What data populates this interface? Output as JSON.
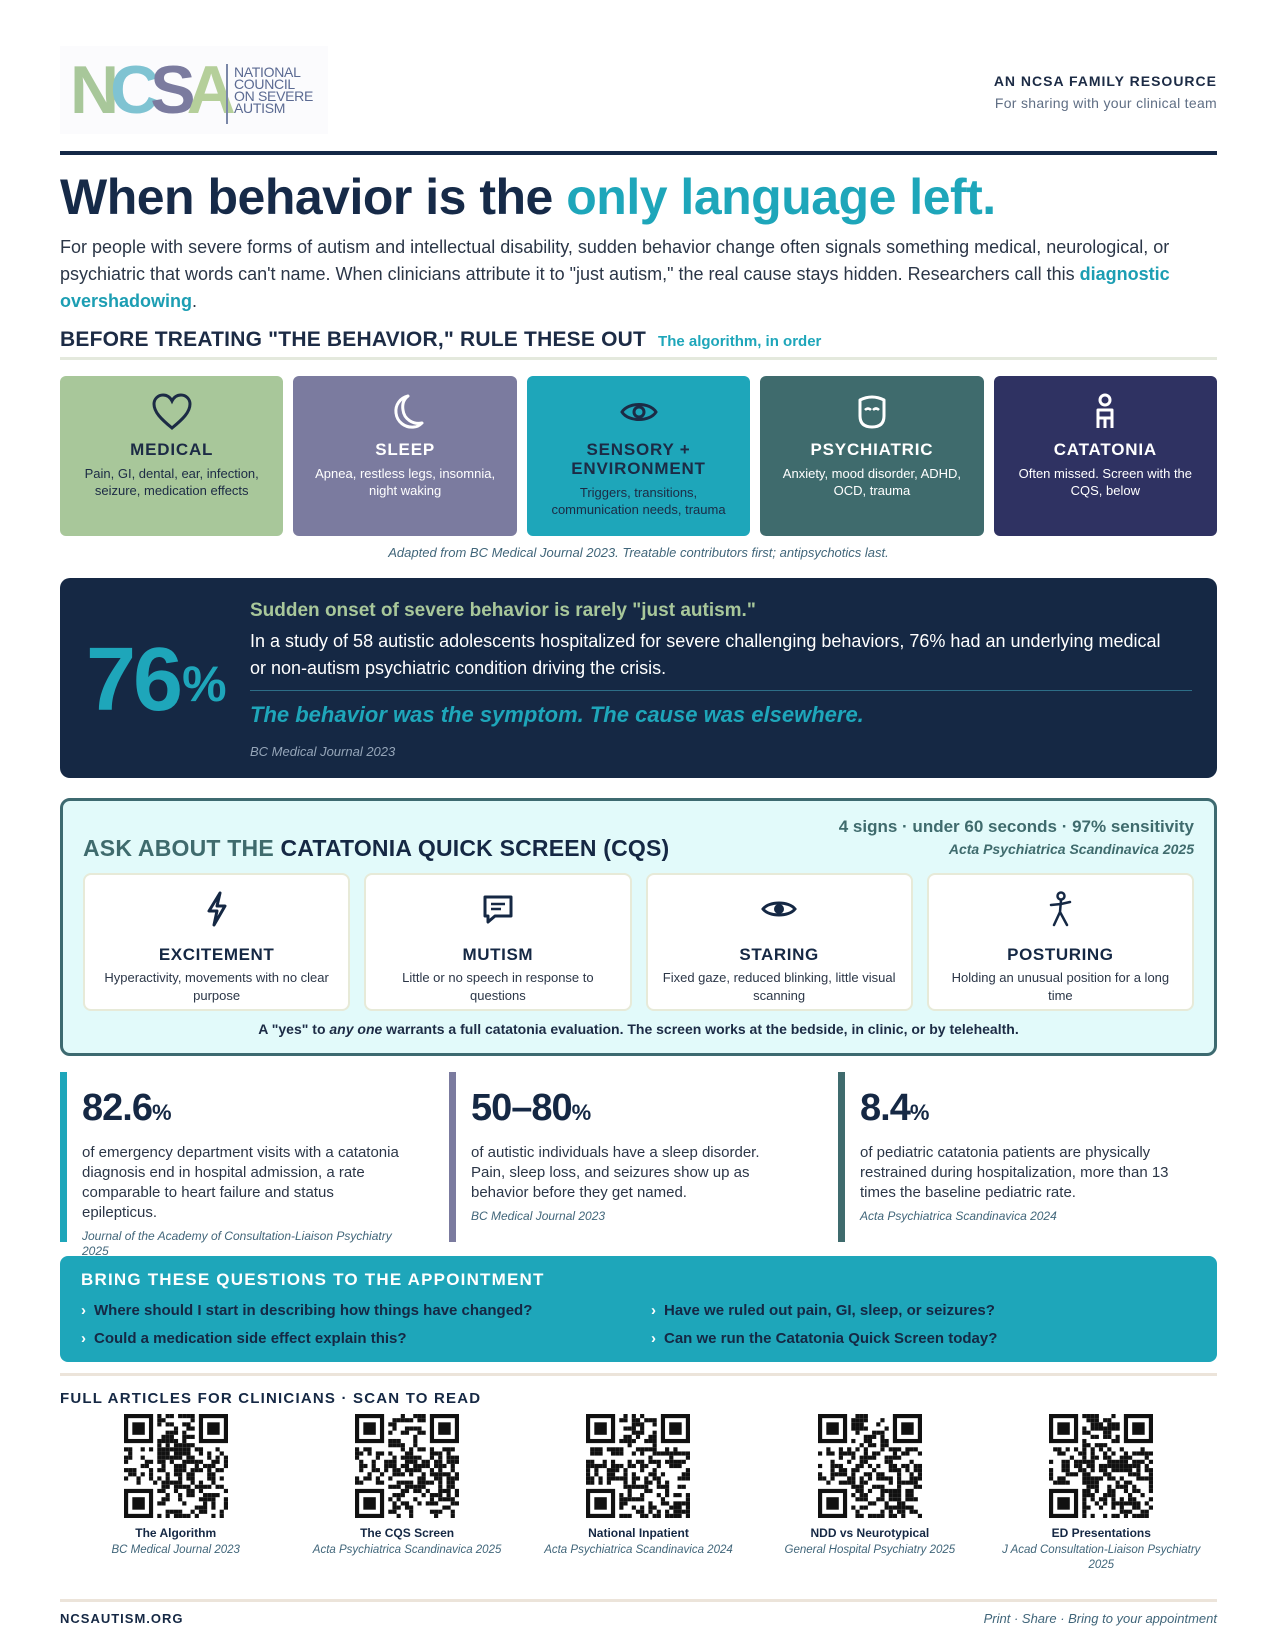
{
  "brand": {
    "logo_letters": [
      "N",
      "C",
      "S",
      "A"
    ],
    "logo_words": [
      "NATIONAL",
      "COUNCIL",
      "ON SEVERE",
      "AUTISM"
    ],
    "colors": {
      "n": "#a8c79a",
      "c": "#7fc3d2",
      "s": "#7b7b9f",
      "a": "#b5cf9a",
      "navy": "#152844",
      "teal": "#1ea6ba"
    }
  },
  "header": {
    "kicker": "AN NCSA FAMILY RESOURCE",
    "sub": "For sharing with your clinical team"
  },
  "headline": {
    "main": "When behavior is the ",
    "accent": "only language left."
  },
  "intro": {
    "text": "For people with severe forms of autism and intellectual disability, sudden behavior change often signals something medical, neurological, or psychiatric that words can't name. When clinicians attribute it to \"just autism,\" the real cause stays hidden. Researchers call this ",
    "highlight": "diagnostic overshadowing",
    "end": "."
  },
  "algorithm": {
    "title": "BEFORE TREATING \"THE BEHAVIOR,\" RULE THESE OUT",
    "subtitle": "The algorithm, in order",
    "cards": [
      {
        "icon": "heart-icon",
        "title": "MEDICAL",
        "desc": "Pain, GI, dental, ear, infection, seizure, medication effects"
      },
      {
        "icon": "moon-icon",
        "title": "SLEEP",
        "desc": "Apnea, restless legs, insomnia, night waking"
      },
      {
        "icon": "eye-icon",
        "title": "SENSORY + ENVIRONMENT",
        "desc": "Triggers, transitions, communication needs, trauma"
      },
      {
        "icon": "face-icon",
        "title": "PSYCHIATRIC",
        "desc": "Anxiety, mood disorder, ADHD, OCD, trauma"
      },
      {
        "icon": "person-icon",
        "title": "CATATONIA",
        "desc": "Often missed. Screen with the CQS, below"
      }
    ],
    "caption": "Adapted from BC Medical Journal 2023. Treatable contributors first; antipsychotics last."
  },
  "stat_panel": {
    "number": "76",
    "unit": "%",
    "heading": "Sudden onset of severe behavior is rarely \"just autism.\"",
    "body": "In a study of 58 autistic adolescents hospitalized for severe challenging behaviors, 76% had an underlying medical or non-autism psychiatric condition driving the crisis.",
    "quote": "The behavior was the symptom. The cause was elsewhere.",
    "source": "BC Medical Journal 2023"
  },
  "cqs": {
    "title_lead": "ASK ABOUT THE ",
    "title_main": "CATATONIA QUICK SCREEN (CQS)",
    "meta": "4 signs · under 60 seconds · 97% sensitivity",
    "meta_source": "Acta Psychiatrica Scandinavica 2025",
    "signs": [
      {
        "icon": "lightning-icon",
        "title": "EXCITEMENT",
        "desc": "Hyperactivity, movements with no clear purpose"
      },
      {
        "icon": "speech-bubble-icon",
        "title": "MUTISM",
        "desc": "Little or no speech in response to questions"
      },
      {
        "icon": "eye-icon",
        "title": "STARING",
        "desc": "Fixed gaze, reduced blinking, little visual scanning"
      },
      {
        "icon": "figure-icon",
        "title": "POSTURING",
        "desc": "Holding an unusual position for a long time"
      }
    ],
    "footer_pre": "A \"yes\" to ",
    "footer_em": "any one",
    "footer_post": " warrants a full catatonia evaluation. The screen works at the bedside, in clinic, or by telehealth."
  },
  "stats": [
    {
      "value": "82.6",
      "unit": "%",
      "text": "of emergency department visits with a catatonia diagnosis end in hospital admission, a rate comparable to heart failure and status epilepticus.",
      "source": "Journal of the Academy of Consultation-Liaison Psychiatry 2025",
      "color": "#1ea6ba"
    },
    {
      "value": "50–80",
      "unit": "%",
      "text": "of autistic individuals have a sleep disorder. Pain, sleep loss, and seizures show up as behavior before they get named.",
      "source": "BC Medical Journal 2023",
      "color": "#7b7b9f"
    },
    {
      "value": "8.4",
      "unit": "%",
      "text": "of pediatric catatonia patients are physically restrained during hospitalization, more than 13 times the baseline pediatric rate.",
      "source": "Acta Psychiatrica Scandinavica 2024",
      "color": "#3f6b6d"
    }
  ],
  "questions": {
    "title": "BRING THESE QUESTIONS TO THE APPOINTMENT",
    "chevron": "›",
    "items": [
      "Where should I start in describing how things have changed?",
      "Have we ruled out pain, GI, sleep, or seizures?",
      "Could a medication side effect explain this?",
      "Can we run the Catatonia Quick Screen today?"
    ]
  },
  "articles": {
    "title": "FULL ARTICLES FOR CLINICIANS · SCAN TO READ",
    "items": [
      {
        "name": "The Algorithm",
        "source": "BC Medical Journal 2023"
      },
      {
        "name": "The CQS Screen",
        "source": "Acta Psychiatrica Scandinavica 2025"
      },
      {
        "name": "National Inpatient",
        "source": "Acta Psychiatrica Scandinavica 2024"
      },
      {
        "name": "NDD vs Neurotypical",
        "source": "General Hospital Psychiatry 2025"
      },
      {
        "name": "ED Presentations",
        "source": "J Acad Consultation-Liaison Psychiatry 2025"
      }
    ]
  },
  "footer": {
    "left": "NCSAUTISM.ORG",
    "right": "Print · Share · Bring to your appointment"
  }
}
